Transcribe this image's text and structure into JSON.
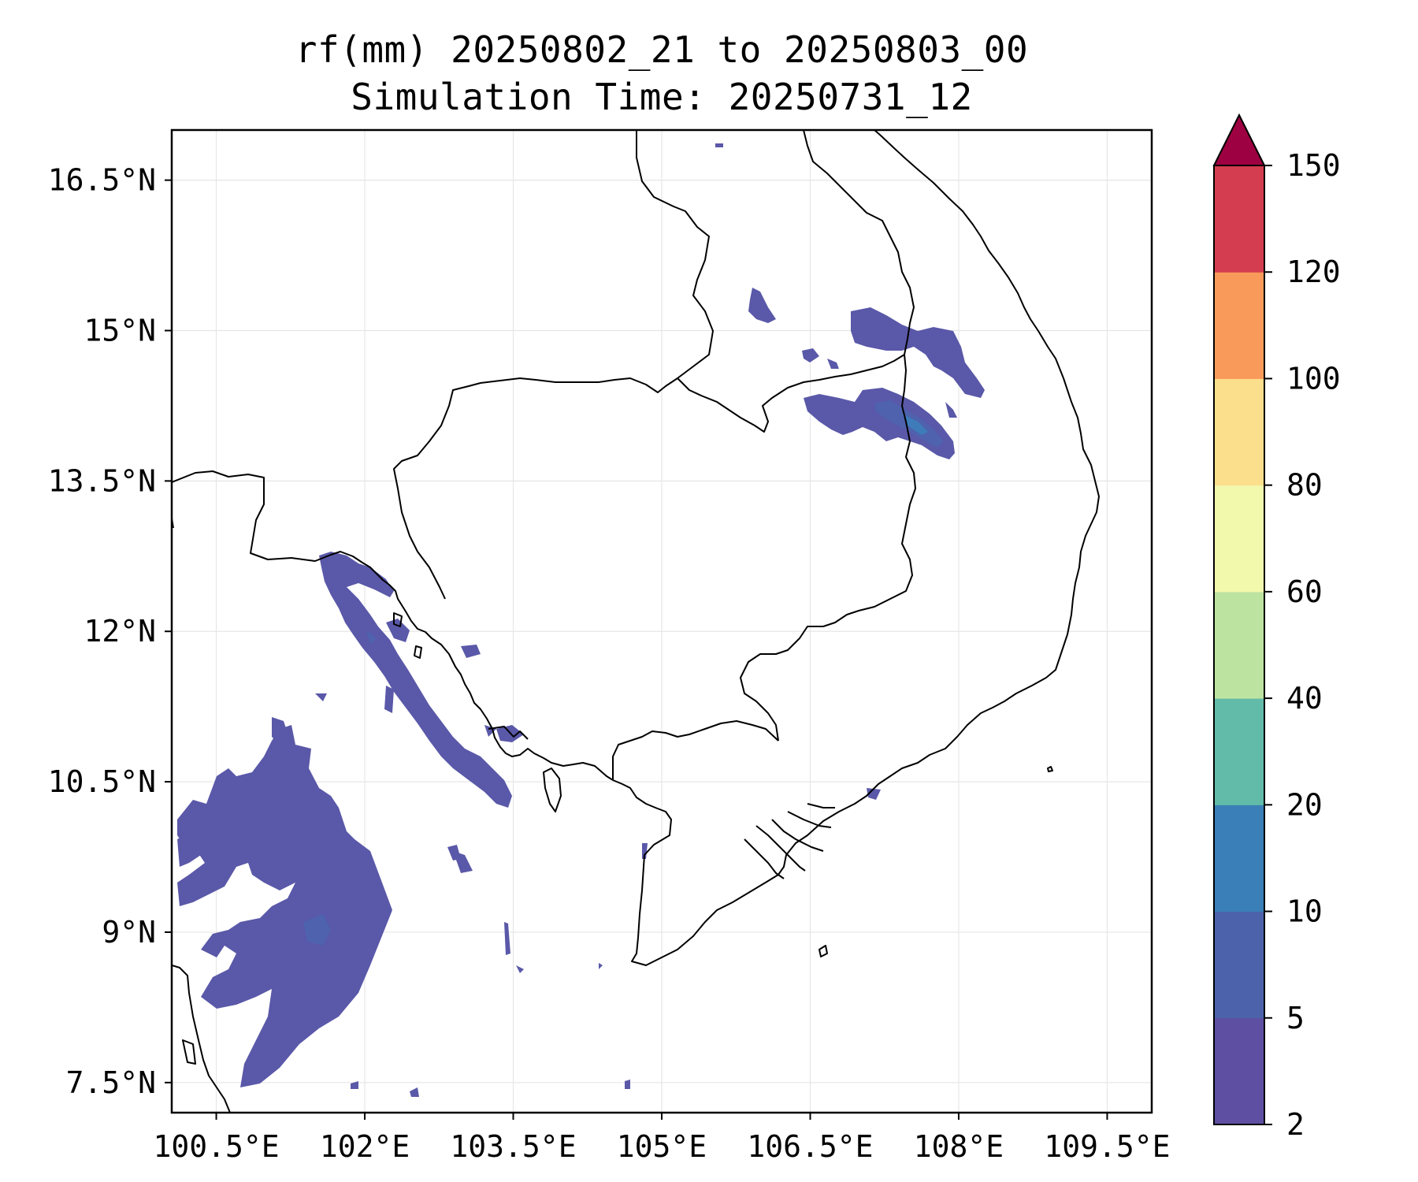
{
  "title": {
    "line1": "rf(mm) 20250802_21 to 20250803_00",
    "line2": "Simulation Time: 20250731_12"
  },
  "axes": {
    "lon_ticks": [
      "100.5°E",
      "102°E",
      "103.5°E",
      "105°E",
      "106.5°E",
      "108°E",
      "109.5°E"
    ],
    "lat_ticks": [
      "16.5°N",
      "15°N",
      "13.5°N",
      "12°N",
      "10.5°N",
      "9°N",
      "7.5°N"
    ],
    "lon_values": [
      100.5,
      102,
      103.5,
      105,
      106.5,
      108,
      109.5
    ],
    "lat_values": [
      16.5,
      15,
      13.5,
      12,
      10.5,
      9,
      7.5
    ],
    "lon_range": [
      100.05,
      109.95
    ],
    "lat_range": [
      7.2,
      17.0
    ],
    "grid": true
  },
  "colorbar": {
    "levels": [
      "2",
      "5",
      "10",
      "20",
      "40",
      "60",
      "80",
      "100",
      "120",
      "150"
    ],
    "colors": [
      "#5e4fa2",
      "#4c63ab",
      "#3a7fb8",
      "#62bba8",
      "#bde3a0",
      "#f2f9ad",
      "#fbdf8c",
      "#f99a5b",
      "#d43d4f",
      "#9e0142"
    ],
    "extend": "max"
  },
  "colors": {
    "rain_light": "#5a58a8",
    "rain_mid": "#4e62ae",
    "rain_heavier": "#3d7cb9",
    "coastline": "#000000"
  }
}
